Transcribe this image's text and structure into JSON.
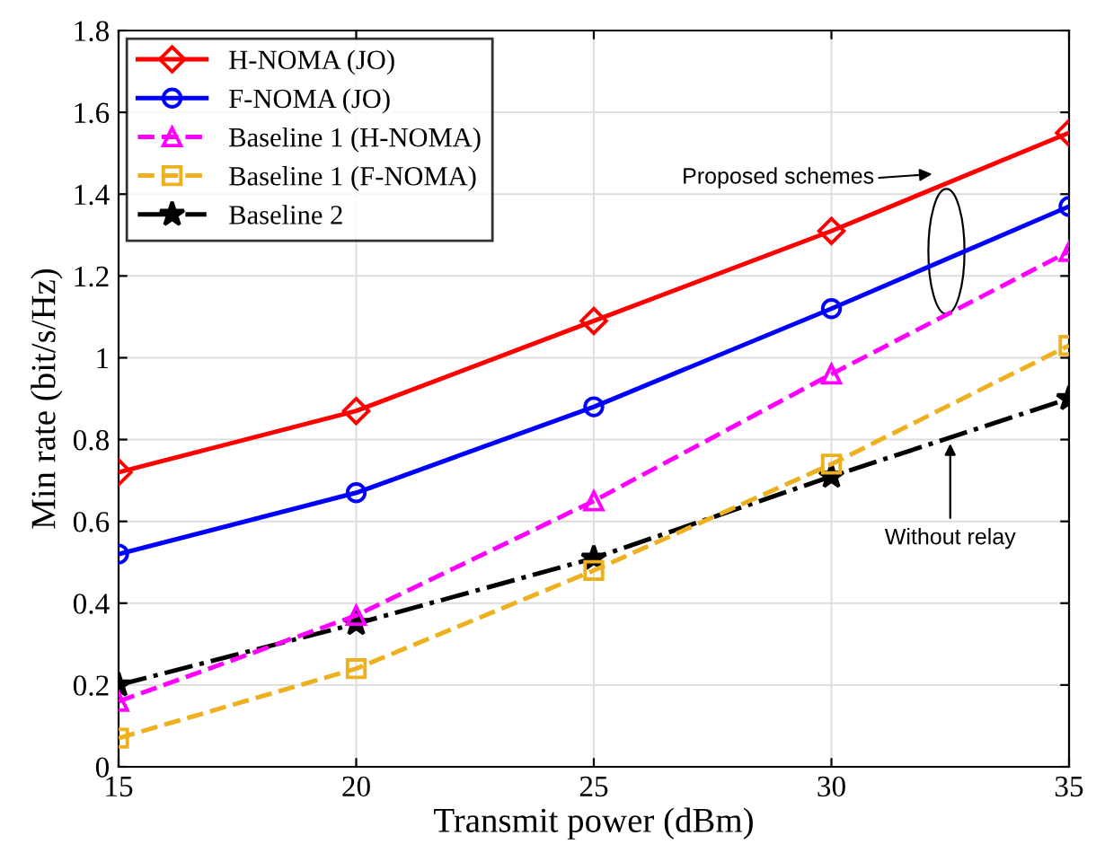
{
  "chart_data": {
    "type": "line",
    "xlabel": "Transmit power (dBm)",
    "ylabel": "Min rate (bit/s/Hz)",
    "x": [
      15,
      20,
      25,
      30,
      35
    ],
    "series": [
      {
        "name": "H-NOMA (JO)",
        "color": "#ff0000",
        "marker": "diamond",
        "line_style": "solid",
        "values": [
          0.72,
          0.87,
          1.09,
          1.31,
          1.55
        ]
      },
      {
        "name": "F-NOMA (JO)",
        "color": "#0000ff",
        "marker": "circle",
        "line_style": "solid",
        "values": [
          0.52,
          0.67,
          0.88,
          1.12,
          1.37
        ]
      },
      {
        "name": "Baseline 1 (H-NOMA)",
        "color": "#ff00ff",
        "marker": "triangle",
        "line_style": "dashed",
        "values": [
          0.16,
          0.37,
          0.65,
          0.96,
          1.26
        ]
      },
      {
        "name": "Baseline 1 (F-NOMA)",
        "color": "#edb120",
        "marker": "square",
        "line_style": "dashed",
        "values": [
          0.07,
          0.24,
          0.48,
          0.74,
          1.03
        ]
      },
      {
        "name": "Baseline 2",
        "color": "#000000",
        "marker": "star",
        "line_style": "dashdot",
        "values": [
          0.2,
          0.35,
          0.51,
          0.71,
          0.9
        ]
      }
    ],
    "xlim": [
      15,
      35
    ],
    "xticks": [
      15,
      20,
      25,
      30,
      35
    ],
    "ylim": [
      0,
      1.8
    ],
    "yticks": [
      0,
      0.2,
      0.4,
      0.6,
      0.8,
      1,
      1.2,
      1.4,
      1.6,
      1.8
    ],
    "grid": true,
    "legend": "top left",
    "annotations": [
      "Proposed schemes",
      {
        "text": "Without relay",
        "x": 32.5,
        "y": 0.79
      }
    ]
  }
}
